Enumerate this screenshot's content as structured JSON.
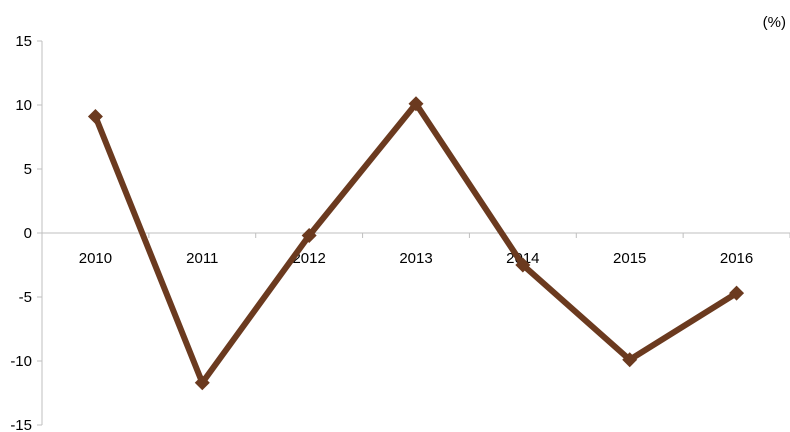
{
  "chart_data": {
    "type": "line",
    "unit_label": "(%)",
    "categories": [
      "2010",
      "2011",
      "2012",
      "2013",
      "2014",
      "2015",
      "2016"
    ],
    "series": [
      {
        "values": [
          9.1,
          -11.7,
          -0.2,
          10.1,
          -2.5,
          -9.9,
          -4.7
        ]
      }
    ],
    "ylim": [
      -15,
      15
    ],
    "yticks": [
      15,
      10,
      5,
      0,
      -5,
      -10,
      -15
    ],
    "grid": false,
    "marker": "diamond",
    "line_color": "#6b3a1f"
  }
}
